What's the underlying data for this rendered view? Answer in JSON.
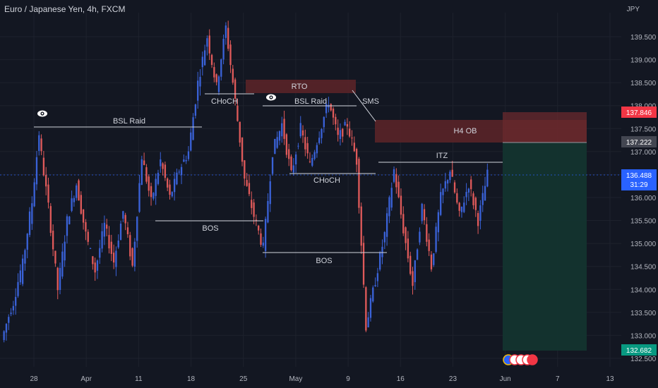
{
  "header": {
    "symbol_title": "Euro / Japanese Yen, 4h, FXCM",
    "currency": "JPY"
  },
  "chart_data": {
    "type": "candlestick",
    "title": "Euro / Japanese Yen, 4h, FXCM",
    "y_axis": {
      "ticks": [
        "139.500",
        "139.000",
        "138.500",
        "138.000",
        "137.500",
        "137.000",
        "136.500",
        "136.000",
        "135.500",
        "135.000",
        "134.500",
        "134.000",
        "133.500",
        "133.000",
        "132.500"
      ],
      "range": [
        132.4,
        139.95
      ]
    },
    "x_axis": {
      "ticks": [
        "28",
        "Apr",
        "11",
        "18",
        "25",
        "May",
        "9",
        "16",
        "23",
        "Jun",
        "7",
        "13"
      ]
    },
    "price_labels": [
      {
        "value": "137.846",
        "color": "#f23645"
      },
      {
        "value": "137.222",
        "color": "#787b86"
      },
      {
        "value": "136.488",
        "color": "#2962ff",
        "sub": "31:29"
      },
      {
        "value": "132.682",
        "color": "#089981"
      }
    ],
    "annotations": [
      {
        "label": "BSL Raid",
        "price": 137.5
      },
      {
        "label": "CHoCH",
        "price": 138.3
      },
      {
        "label": "RTO",
        "price": 138.45
      },
      {
        "label": "BSL Raid",
        "price": 137.98
      },
      {
        "label": "SMS",
        "price": 137.8
      },
      {
        "label": "CHoCH",
        "price": 136.6
      },
      {
        "label": "BOS",
        "price": 135.55
      },
      {
        "label": "BOS",
        "price": 134.8
      },
      {
        "label": "H4 OB",
        "price": 137.5
      },
      {
        "label": "ITZ",
        "price": 136.8
      }
    ],
    "zones": {
      "rto": [
        138.3,
        138.6
      ],
      "h4_ob": [
        137.2,
        137.85
      ],
      "stop_zone": [
        137.2,
        137.85
      ],
      "target_zone": [
        132.68,
        137.2
      ]
    },
    "series": [
      {
        "kind": "ohlc-approx",
        "points": [
          [
            132.9,
            133.6
          ],
          [
            133.5,
            134.4
          ],
          [
            134.2,
            135.6
          ],
          [
            135.4,
            137.4
          ],
          [
            137.3,
            135.8
          ],
          [
            135.8,
            134.0
          ],
          [
            134.0,
            135.5
          ],
          [
            135.5,
            136.3
          ],
          [
            136.3,
            135.2
          ],
          [
            135.2,
            134.4
          ],
          [
            134.4,
            135.4
          ],
          [
            135.4,
            134.6
          ],
          [
            134.6,
            135.7
          ],
          [
            135.7,
            134.5
          ],
          [
            134.5,
            136.9
          ],
          [
            136.9,
            135.9
          ],
          [
            135.9,
            136.8
          ],
          [
            136.8,
            136.0
          ],
          [
            136.0,
            136.6
          ],
          [
            136.6,
            137.0
          ],
          [
            137.0,
            138.5
          ],
          [
            138.5,
            139.5
          ],
          [
            139.5,
            138.4
          ],
          [
            138.4,
            139.7
          ],
          [
            139.7,
            138.1
          ],
          [
            138.1,
            136.4
          ],
          [
            136.4,
            135.6
          ],
          [
            135.6,
            134.9
          ],
          [
            134.9,
            137.0
          ],
          [
            137.0,
            137.6
          ],
          [
            137.6,
            136.5
          ],
          [
            136.5,
            137.5
          ],
          [
            137.5,
            136.7
          ],
          [
            136.7,
            137.4
          ],
          [
            137.4,
            138.1
          ],
          [
            138.1,
            137.3
          ],
          [
            137.3,
            137.6
          ],
          [
            137.6,
            136.8
          ],
          [
            136.8,
            133.2
          ],
          [
            133.2,
            134.2
          ],
          [
            134.2,
            135.2
          ],
          [
            135.2,
            136.6
          ],
          [
            136.6,
            135.3
          ],
          [
            135.3,
            134.1
          ],
          [
            134.1,
            135.8
          ],
          [
            135.8,
            134.5
          ],
          [
            134.5,
            136.0
          ],
          [
            136.0,
            136.6
          ],
          [
            136.6,
            135.6
          ],
          [
            135.6,
            136.3
          ],
          [
            136.3,
            135.5
          ],
          [
            135.5,
            136.5
          ]
        ]
      }
    ],
    "markers": [
      "eye-icon",
      "eye-icon"
    ]
  }
}
